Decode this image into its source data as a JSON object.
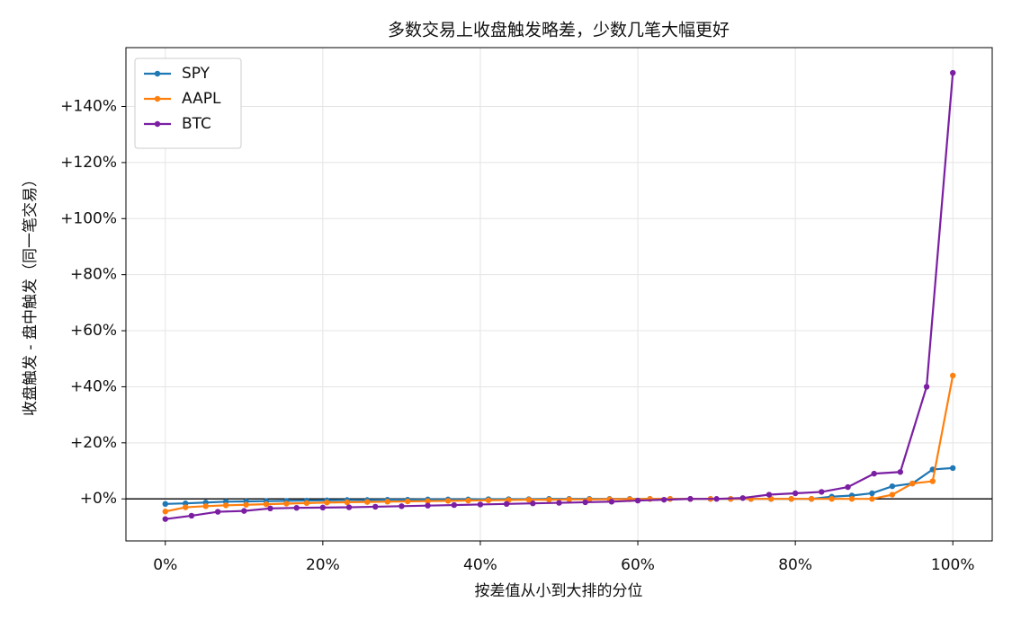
{
  "chart_data": {
    "type": "line",
    "title": "多数交易上收盘触发略差，少数几笔大幅更好",
    "x_label": "按差值从小到大排的分位",
    "y_label": "收盘触发 - 盘中触发（同一笔交易）",
    "xlim": [
      -5,
      105
    ],
    "ylim": [
      -15,
      161
    ],
    "xticks": [
      {
        "value": 0,
        "label": "0%"
      },
      {
        "value": 20,
        "label": "20%"
      },
      {
        "value": 40,
        "label": "40%"
      },
      {
        "value": 60,
        "label": "60%"
      },
      {
        "value": 80,
        "label": "80%"
      },
      {
        "value": 100,
        "label": "100%"
      }
    ],
    "yticks": [
      {
        "value": 0,
        "label": "+0%"
      },
      {
        "value": 20,
        "label": "+20%"
      },
      {
        "value": 40,
        "label": "+40%"
      },
      {
        "value": 60,
        "label": "+60%"
      },
      {
        "value": 80,
        "label": "+80%"
      },
      {
        "value": 100,
        "label": "+100%"
      },
      {
        "value": 120,
        "label": "+120%"
      },
      {
        "value": 140,
        "label": "+140%"
      }
    ],
    "grid": true,
    "legend": "upper-left",
    "hline": 0,
    "series": [
      {
        "name": "SPY",
        "color": "#1f77b4",
        "x": [
          0,
          2.56,
          5.13,
          7.69,
          10.26,
          12.82,
          15.38,
          17.95,
          20.51,
          23.08,
          25.64,
          28.21,
          30.77,
          33.33,
          35.9,
          38.46,
          41.03,
          43.59,
          46.15,
          48.72,
          51.28,
          53.85,
          56.41,
          58.97,
          61.54,
          64.1,
          66.67,
          69.23,
          71.79,
          74.36,
          76.92,
          79.49,
          82.05,
          84.62,
          87.18,
          89.74,
          92.31,
          94.87,
          97.44,
          100
        ],
        "values": [
          -1.8,
          -1.6,
          -1.3,
          -1.0,
          -0.9,
          -0.8,
          -0.7,
          -0.6,
          -0.5,
          -0.4,
          -0.4,
          -0.3,
          -0.3,
          -0.2,
          -0.2,
          -0.2,
          -0.1,
          -0.1,
          -0.1,
          0,
          0,
          0,
          0,
          0,
          0,
          0,
          0,
          0,
          0,
          0,
          0,
          0,
          0,
          0.8,
          1.2,
          2.0,
          4.5,
          5.5,
          10.5,
          11
        ]
      },
      {
        "name": "AAPL",
        "color": "#ff7f0e",
        "x": [
          0,
          2.56,
          5.13,
          7.69,
          10.26,
          12.82,
          15.38,
          17.95,
          20.51,
          23.08,
          25.64,
          28.21,
          30.77,
          33.33,
          35.9,
          38.46,
          41.03,
          43.59,
          46.15,
          48.72,
          51.28,
          53.85,
          56.41,
          58.97,
          61.54,
          64.1,
          66.67,
          69.23,
          71.79,
          74.36,
          76.92,
          79.49,
          82.05,
          84.62,
          87.18,
          89.74,
          92.31,
          94.87,
          97.44,
          100
        ],
        "values": [
          -4.5,
          -3.0,
          -2.6,
          -2.3,
          -2.1,
          -1.9,
          -1.7,
          -1.5,
          -1.3,
          -1.2,
          -1.1,
          -1.0,
          -0.9,
          -0.8,
          -0.7,
          -0.6,
          -0.5,
          -0.4,
          -0.3,
          -0.3,
          -0.2,
          -0.2,
          -0.1,
          -0.1,
          0,
          0,
          0,
          0,
          0,
          0,
          0,
          0,
          0,
          0,
          0,
          0,
          1.5,
          5.5,
          6.3,
          44
        ]
      },
      {
        "name": "BTC",
        "color": "#7b1fa2",
        "x": [
          0,
          3.33,
          6.67,
          10,
          13.33,
          16.67,
          20,
          23.33,
          26.67,
          30,
          33.33,
          36.67,
          40,
          43.33,
          46.67,
          50,
          53.33,
          56.67,
          60,
          63.33,
          66.67,
          70,
          73.33,
          76.67,
          80,
          83.33,
          86.67,
          90,
          93.33,
          96.67,
          100
        ],
        "values": [
          -7.2,
          -6.0,
          -4.6,
          -4.3,
          -3.4,
          -3.2,
          -3.1,
          -3.0,
          -2.8,
          -2.6,
          -2.4,
          -2.2,
          -2.0,
          -1.8,
          -1.6,
          -1.4,
          -1.2,
          -1.0,
          -0.6,
          -0.3,
          0,
          0,
          0.3,
          1.5,
          2.0,
          2.5,
          4.2,
          9.0,
          9.6,
          40,
          152
        ]
      }
    ]
  }
}
